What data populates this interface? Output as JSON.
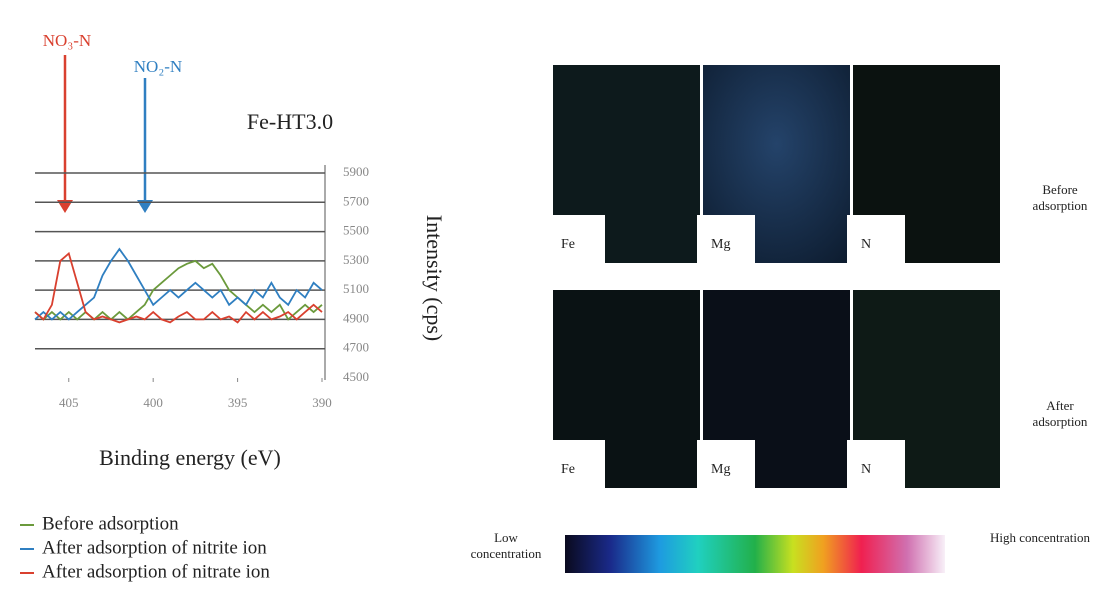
{
  "chart_data": {
    "type": "line",
    "title": "Fe-HT3.0",
    "x_label": "Binding energy (eV)",
    "y_label": "Intensity (cps)",
    "annotations": [
      "NO₃-N",
      "NO₂-N"
    ],
    "xlim": [
      407,
      390
    ],
    "ylim": [
      4500,
      5900
    ],
    "xticks": [
      405,
      400,
      395,
      390
    ],
    "yticks": [
      4500,
      4700,
      4900,
      5100,
      5300,
      5500,
      5700,
      5900
    ],
    "grid": true,
    "x": [
      407,
      406.5,
      406,
      405.5,
      405,
      404.5,
      404,
      403.5,
      403,
      402.5,
      402,
      401.5,
      401,
      400.5,
      400,
      399.5,
      399,
      398.5,
      398,
      397.5,
      397,
      396.5,
      396,
      395.5,
      395,
      394.5,
      394,
      393.5,
      393,
      392.5,
      392,
      391.5,
      391,
      390.5,
      390
    ],
    "series": [
      {
        "name": "Before adsorption",
        "color": "#6b9a3c",
        "values": [
          4950,
          4900,
          4950,
          4900,
          4950,
          4900,
          4950,
          4900,
          4950,
          4900,
          4950,
          4900,
          4950,
          5000,
          5100,
          5150,
          5200,
          5250,
          5280,
          5300,
          5250,
          5280,
          5200,
          5100,
          5050,
          5000,
          4950,
          5000,
          4950,
          5000,
          4900,
          4950,
          5000,
          4950,
          5000
        ]
      },
      {
        "name": "After adsorption of nitrite ion",
        "color": "#2f7fc1",
        "values": [
          4900,
          4950,
          4900,
          4950,
          4900,
          4950,
          5000,
          5050,
          5200,
          5300,
          5380,
          5300,
          5200,
          5100,
          5000,
          5050,
          5100,
          5050,
          5100,
          5150,
          5100,
          5050,
          5100,
          5000,
          5050,
          5000,
          5100,
          5050,
          5150,
          5050,
          5000,
          5100,
          5050,
          5150,
          5100
        ]
      },
      {
        "name": "After adsorption of nitrate ion",
        "color": "#d9402f",
        "values": [
          4950,
          4900,
          5000,
          5300,
          5350,
          5150,
          4950,
          4900,
          4920,
          4900,
          4880,
          4900,
          4920,
          4900,
          4950,
          4900,
          4880,
          4920,
          4950,
          4900,
          4900,
          4950,
          4900,
          4920,
          4880,
          4950,
          4900,
          4950,
          4900,
          4920,
          4950,
          4900,
          4950,
          5000,
          4950
        ]
      }
    ]
  },
  "panels": {
    "rows": [
      {
        "label": "Before adsorption",
        "maps": [
          "Fe",
          "Mg",
          "N"
        ]
      },
      {
        "label": "After adsorption",
        "maps": [
          "Fe",
          "Mg",
          "N"
        ]
      }
    ],
    "colorbar": {
      "low": "Low concentration",
      "high": "High concentration"
    }
  }
}
